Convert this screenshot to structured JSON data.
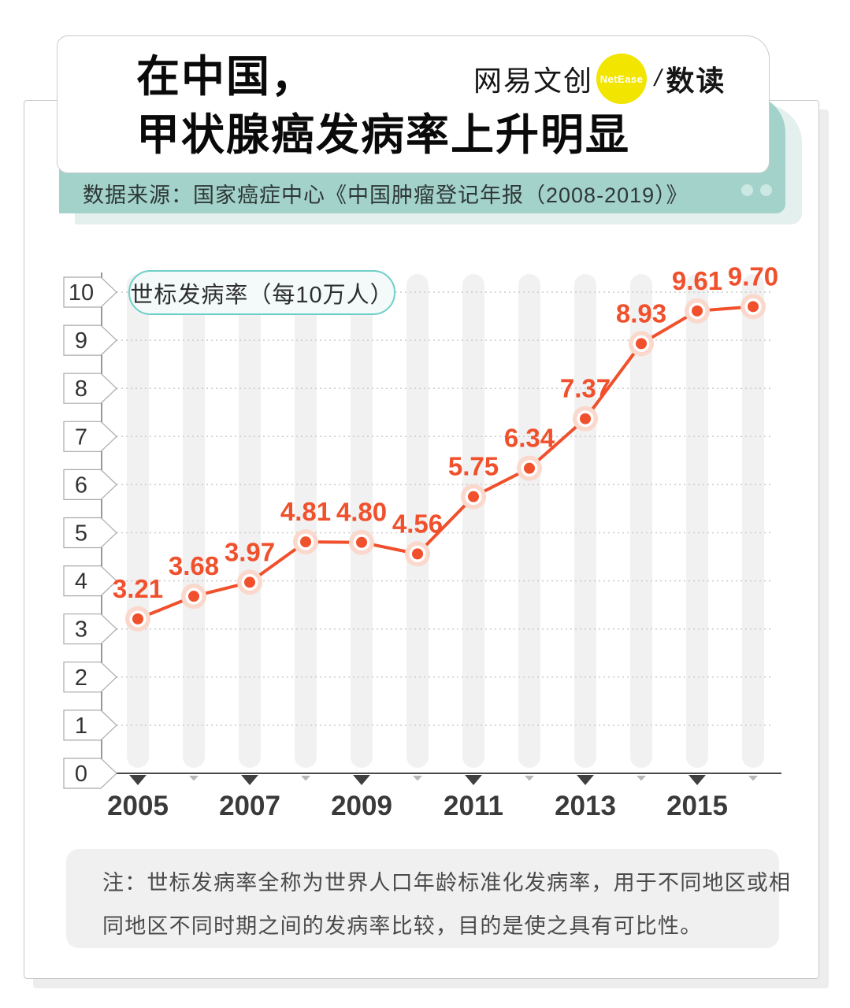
{
  "header": {
    "title_line1": "在中国，",
    "title_line2": "甲状腺癌发病率上升明显",
    "logo": {
      "brand": "网易文创",
      "badge": "NetEase",
      "separator": "/",
      "product": "数读"
    }
  },
  "source_bar": {
    "text": "数据来源：国家癌症中心《中国肿瘤登记年报（2008-2019）》"
  },
  "chart_data": {
    "type": "line",
    "legend": "世标发病率（每10万人）",
    "legend_position": "top-left",
    "x": [
      2005,
      2006,
      2007,
      2008,
      2009,
      2010,
      2011,
      2012,
      2013,
      2014,
      2015,
      2016
    ],
    "values": [
      3.21,
      3.68,
      3.97,
      4.81,
      4.8,
      4.56,
      5.75,
      6.34,
      7.37,
      8.93,
      9.61,
      9.7
    ],
    "value_labels": [
      "3.21",
      "3.68",
      "3.97",
      "4.81",
      "4.80",
      "4.56",
      "5.75",
      "6.34",
      "7.37",
      "8.93",
      "9.61",
      "9.70"
    ],
    "x_tick_labels": [
      "2005",
      "2007",
      "2009",
      "2011",
      "2013",
      "2015"
    ],
    "y_ticks": [
      0,
      1,
      2,
      3,
      4,
      5,
      6,
      7,
      8,
      9,
      10
    ],
    "ylim": [
      0,
      10
    ],
    "grid": "dotted-horizontal",
    "background_columns": true,
    "line_color": "#F0502C",
    "point_color": "#F0502C",
    "point_halo_color": "#FAD8CC",
    "label_color": "#F0502C"
  },
  "note": {
    "line1": "注：世标发病率全称为世界人口年龄标准化发病率，用于不同地区或相",
    "line2": "同地区不同时期之间的发病率比较，目的是使之具有可比性。"
  },
  "colors": {
    "accent_orange": "#F0502C",
    "point_halo": "#FAD8CC",
    "teal_bar": "#A3D2CB",
    "teal_bar_dots": "#CCE8E3",
    "teal_shadow": "#E4F0EE",
    "legend_border": "#6FCFC8",
    "legend_fill": "#F3FAF9",
    "yellow_badge": "#F2E500",
    "column_stripe": "#F1F1F1",
    "gridline": "#CBCBCB",
    "axis": "#4A4A4A",
    "panel_border": "#C9C9C9",
    "note_bg": "#F0F0F0"
  }
}
